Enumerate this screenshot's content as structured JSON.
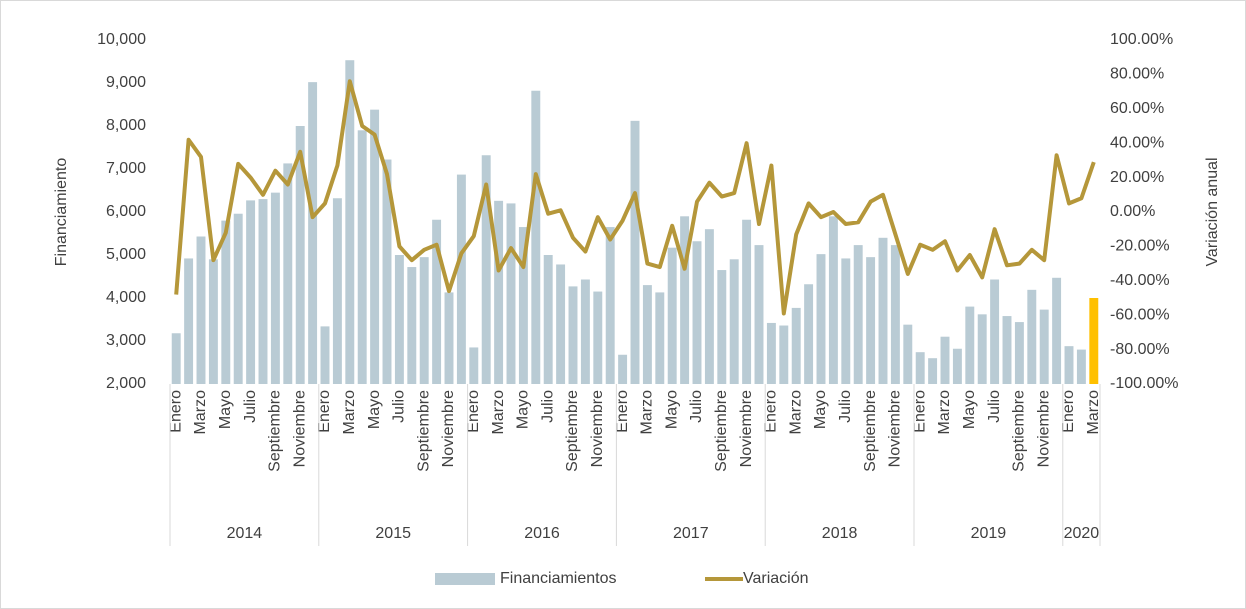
{
  "chart_data": {
    "type": "bar_line",
    "y_label": "Financiamiento",
    "y2_label": "Variación anual",
    "categories": [
      "Enero",
      null,
      "Marzo",
      null,
      "Mayo",
      null,
      "Julio",
      null,
      "Septiembre",
      null,
      "Noviembre",
      null,
      "Enero",
      null,
      "Marzo",
      null,
      "Mayo",
      null,
      "Julio",
      null,
      "Septiembre",
      null,
      "Noviembre",
      null,
      "Enero",
      null,
      "Marzo",
      null,
      "Mayo",
      null,
      "Julio",
      null,
      "Septiembre",
      null,
      "Noviembre",
      null,
      "Enero",
      null,
      "Marzo",
      null,
      "Mayo",
      null,
      "Julio",
      null,
      "Septiembre",
      null,
      "Noviembre",
      null,
      "Enero",
      null,
      "Marzo",
      null,
      "Mayo",
      null,
      "Julio",
      null,
      "Septiembre",
      null,
      "Noviembre",
      null,
      "Enero",
      null,
      "Marzo",
      null,
      "Mayo",
      null,
      "Julio",
      null,
      "Septiembre",
      null,
      "Noviembre",
      null,
      "Enero",
      null,
      "Marzo"
    ],
    "groups": [
      {
        "label": "2014",
        "count": 12
      },
      {
        "label": "2015",
        "count": 12
      },
      {
        "label": "2016",
        "count": 12
      },
      {
        "label": "2017",
        "count": 12
      },
      {
        "label": "2018",
        "count": 12
      },
      {
        "label": "2019",
        "count": 12
      },
      {
        "label": "2020",
        "count": 3
      }
    ],
    "series": [
      {
        "name": "Financiamientos",
        "kind": "bar",
        "color": "#b9cbd4",
        "colors": [
          "#b9cbd4",
          "#b9cbd4",
          "#b9cbd4",
          "#b9cbd4",
          "#b9cbd4",
          "#b9cbd4",
          "#b9cbd4",
          "#b9cbd4",
          "#b9cbd4",
          "#b9cbd4",
          "#b9cbd4",
          "#b9cbd4",
          "#b9cbd4",
          "#b9cbd4",
          "#b9cbd4",
          "#b9cbd4",
          "#b9cbd4",
          "#b9cbd4",
          "#b9cbd4",
          "#b9cbd4",
          "#b9cbd4",
          "#b9cbd4",
          "#b9cbd4",
          "#b9cbd4",
          "#b9cbd4",
          "#b9cbd4",
          "#b9cbd4",
          "#b9cbd4",
          "#b9cbd4",
          "#b9cbd4",
          "#b9cbd4",
          "#b9cbd4",
          "#b9cbd4",
          "#b9cbd4",
          "#b9cbd4",
          "#b9cbd4",
          "#b9cbd4",
          "#b9cbd4",
          "#b9cbd4",
          "#b9cbd4",
          "#b9cbd4",
          "#b9cbd4",
          "#b9cbd4",
          "#b9cbd4",
          "#b9cbd4",
          "#b9cbd4",
          "#b9cbd4",
          "#b9cbd4",
          "#b9cbd4",
          "#b9cbd4",
          "#b9cbd4",
          "#b9cbd4",
          "#b9cbd4",
          "#b9cbd4",
          "#b9cbd4",
          "#b9cbd4",
          "#b9cbd4",
          "#b9cbd4",
          "#b9cbd4",
          "#b9cbd4",
          "#b9cbd4",
          "#b9cbd4",
          "#b9cbd4",
          "#b9cbd4",
          "#b9cbd4",
          "#b9cbd4",
          "#b9cbd4",
          "#b9cbd4",
          "#b9cbd4",
          "#b9cbd4",
          "#b9cbd4",
          "#b9cbd4",
          "#b9cbd4",
          "#b9cbd4",
          "#ffc000"
        ],
        "values": [
          3180,
          4920,
          5430,
          4900,
          5800,
          5960,
          6270,
          6300,
          6450,
          7130,
          8000,
          9020,
          3340,
          6320,
          9530,
          7900,
          8380,
          7220,
          5000,
          4720,
          4950,
          5820,
          4130,
          6870,
          2850,
          7320,
          6260,
          6200,
          5650,
          8820,
          5000,
          4780,
          4270,
          4430,
          4150,
          5650,
          2680,
          8120,
          4300,
          4130,
          5170,
          5900,
          5320,
          5600,
          4650,
          4900,
          5820,
          5230,
          3420,
          3360,
          3770,
          4320,
          5020,
          5900,
          4920,
          5230,
          4950,
          5400,
          5230,
          3380,
          2740,
          2600,
          3100,
          2820,
          3800,
          3620,
          4430,
          3580,
          3440,
          4190,
          3730,
          4470,
          2880,
          2800,
          4000
        ]
      },
      {
        "name": "Variación",
        "kind": "line",
        "axis": "y2",
        "color": "#b5973a",
        "values": [
          -48,
          42,
          32,
          -28,
          -12,
          28,
          20,
          10,
          24,
          16,
          35,
          -3,
          5,
          27,
          76,
          50,
          45,
          22,
          -20,
          -28,
          -22,
          -19,
          -46,
          -24,
          -14,
          16,
          -34,
          -21,
          -32,
          22,
          -1,
          1,
          -15,
          -23,
          -3,
          -16,
          -5,
          11,
          -30,
          -32,
          -8,
          -33,
          6,
          17,
          9,
          11,
          40,
          -7,
          27,
          -59,
          -13,
          5,
          -3,
          0,
          -7,
          -6,
          6,
          10,
          -13,
          -36,
          -19,
          -22,
          -17,
          -34,
          -25,
          -38,
          -10,
          -31,
          -30,
          -22,
          -28,
          33,
          5,
          8,
          29
        ]
      }
    ],
    "ylim": [
      2000,
      10000
    ],
    "yticks": [
      {
        "value": 2000,
        "label": "2,000"
      },
      {
        "value": 3000,
        "label": "3,000"
      },
      {
        "value": 4000,
        "label": "4,000"
      },
      {
        "value": 5000,
        "label": "5,000"
      },
      {
        "value": 6000,
        "label": "6,000"
      },
      {
        "value": 7000,
        "label": "7,000"
      },
      {
        "value": 8000,
        "label": "8,000"
      },
      {
        "value": 9000,
        "label": "9,000"
      },
      {
        "value": 10000,
        "label": "10,000"
      }
    ],
    "y2lim": [
      -100,
      100
    ],
    "y2ticks": [
      {
        "value": -100,
        "label": "-100.00%"
      },
      {
        "value": -80,
        "label": "-80.00%"
      },
      {
        "value": -60,
        "label": "-60.00%"
      },
      {
        "value": -40,
        "label": "-40.00%"
      },
      {
        "value": -20,
        "label": "-20.00%"
      },
      {
        "value": 0,
        "label": "0.00%"
      },
      {
        "value": 20,
        "label": "20.00%"
      },
      {
        "value": 40,
        "label": "40.00%"
      },
      {
        "value": 60,
        "label": "60.00%"
      },
      {
        "value": 80,
        "label": "80.00%"
      },
      {
        "value": 100,
        "label": "100.00%"
      }
    ],
    "grid": false,
    "legend": "bottom"
  }
}
